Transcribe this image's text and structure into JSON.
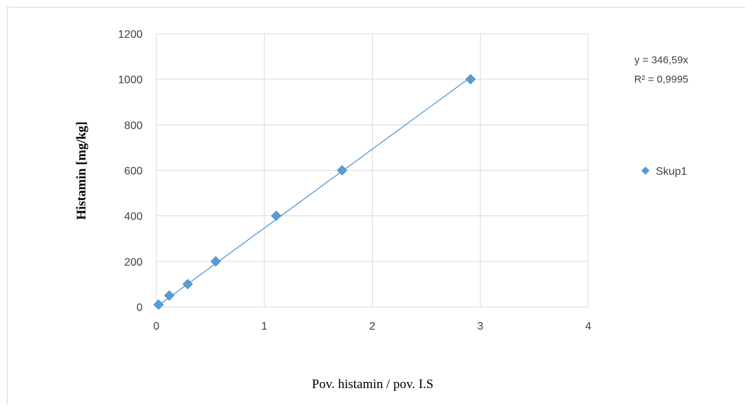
{
  "chart_data": {
    "type": "scatter",
    "xlabel": "Pov. histamin / pov. I.S",
    "ylabel": "Histamin [mg/kg]",
    "xlim": [
      0,
      4
    ],
    "ylim": [
      0,
      1200
    ],
    "x_ticks": [
      "0",
      "1",
      "2",
      "3",
      "4"
    ],
    "y_ticks": [
      "0",
      "200",
      "400",
      "600",
      "800",
      "1000",
      "1200"
    ],
    "grid": true,
    "legend_position": "right",
    "series": [
      {
        "name": "Skup1",
        "color": "#5b9bd5",
        "marker": "diamond",
        "points": [
          {
            "x": 0.02,
            "y": 10
          },
          {
            "x": 0.12,
            "y": 50
          },
          {
            "x": 0.29,
            "y": 100
          },
          {
            "x": 0.55,
            "y": 200
          },
          {
            "x": 1.11,
            "y": 400
          },
          {
            "x": 1.72,
            "y": 600
          },
          {
            "x": 2.91,
            "y": 1000
          }
        ]
      }
    ],
    "trendline": {
      "type": "linear",
      "slope": 346.59,
      "intercept": 0,
      "x_range": [
        0,
        2.91
      ],
      "color": "#5b9bd5",
      "equation": "y = 346,59x",
      "r_squared": "R² = 0,9995"
    }
  }
}
